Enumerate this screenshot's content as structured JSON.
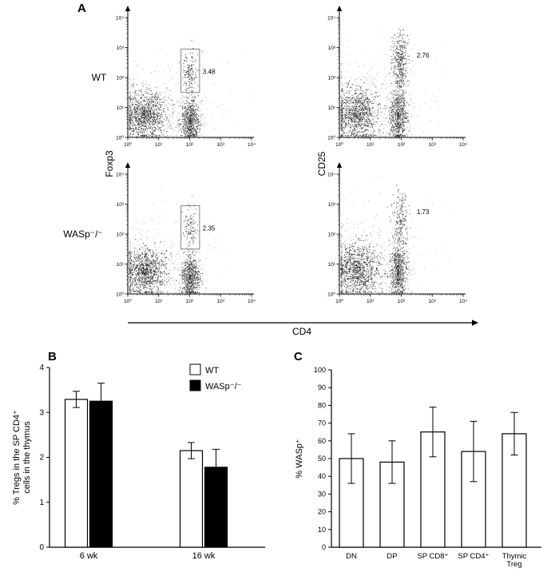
{
  "labels": {
    "panel_a": "A",
    "panel_b": "B",
    "panel_c": "C"
  },
  "flow": {
    "row_labels": [
      "WT",
      "WASp⁻/⁻"
    ],
    "y_axis_labels": [
      "Foxp3",
      "CD25"
    ],
    "x_axis_label": "CD4",
    "tick_labels": [
      "10⁰",
      "10¹",
      "10²",
      "10³",
      "10⁴"
    ]
  },
  "chart_data": [
    {
      "id": "flow_wt_foxp3",
      "type": "scatter",
      "subtype": "flow-cytometry-density",
      "row": "WT",
      "xlabel": "CD4",
      "ylabel": "Foxp3",
      "xscale": "log",
      "yscale": "log",
      "xlim": [
        1,
        10000
      ],
      "ylim": [
        1,
        10000
      ],
      "gate_label": "3.48"
    },
    {
      "id": "flow_wt_cd25",
      "type": "scatter",
      "subtype": "flow-cytometry-density",
      "row": "WT",
      "xlabel": "CD4",
      "ylabel": "CD25",
      "xscale": "log",
      "yscale": "log",
      "xlim": [
        1,
        10000
      ],
      "ylim": [
        1,
        10000
      ],
      "gate_label": "2.76"
    },
    {
      "id": "flow_ko_foxp3",
      "type": "scatter",
      "subtype": "flow-cytometry-density",
      "row": "WASp⁻/⁻",
      "xlabel": "CD4",
      "ylabel": "Foxp3",
      "xscale": "log",
      "yscale": "log",
      "xlim": [
        1,
        10000
      ],
      "ylim": [
        1,
        10000
      ],
      "gate_label": "2.35"
    },
    {
      "id": "flow_ko_cd25",
      "type": "scatter",
      "subtype": "flow-cytometry-density",
      "row": "WASp⁻/⁻",
      "xlabel": "CD4",
      "ylabel": "CD25",
      "xscale": "log",
      "yscale": "log",
      "xlim": [
        1,
        10000
      ],
      "ylim": [
        1,
        10000
      ],
      "gate_label": "1.73"
    },
    {
      "id": "tregs_bar",
      "type": "bar",
      "categories": [
        "6 wk",
        "16 wk"
      ],
      "series": [
        {
          "name": "WT",
          "fill": "#ffffff",
          "values": [
            3.29,
            2.15
          ],
          "errors": [
            0.18,
            0.18
          ]
        },
        {
          "name": "WASp⁻/⁻",
          "fill": "#000000",
          "values": [
            3.25,
            1.78
          ],
          "errors": [
            0.4,
            0.4
          ]
        }
      ],
      "ylabel": "% Tregs in the SP CD4⁺ cells in the thymus",
      "ylabel_lines": [
        "% Tregs in the SP CD4⁺",
        "cells in the thymus"
      ],
      "ylim": [
        0,
        4
      ],
      "yticks": [
        0,
        1,
        2,
        3,
        4
      ],
      "grid": false,
      "legend_position": "top"
    },
    {
      "id": "wasp_bar",
      "type": "bar",
      "categories": [
        "DN",
        "DP",
        "SP CD8⁺",
        "SP CD4⁺",
        "Thymic Treg"
      ],
      "values": [
        50,
        48,
        65,
        54,
        64
      ],
      "errors": [
        14,
        12,
        14,
        17,
        12
      ],
      "bar_fill": "#ffffff",
      "ylabel": "% WASp⁺",
      "ylim": [
        0,
        100
      ],
      "yticks": [
        0,
        10,
        20,
        30,
        40,
        50,
        60,
        70,
        80,
        90,
        100
      ],
      "grid": false
    }
  ]
}
